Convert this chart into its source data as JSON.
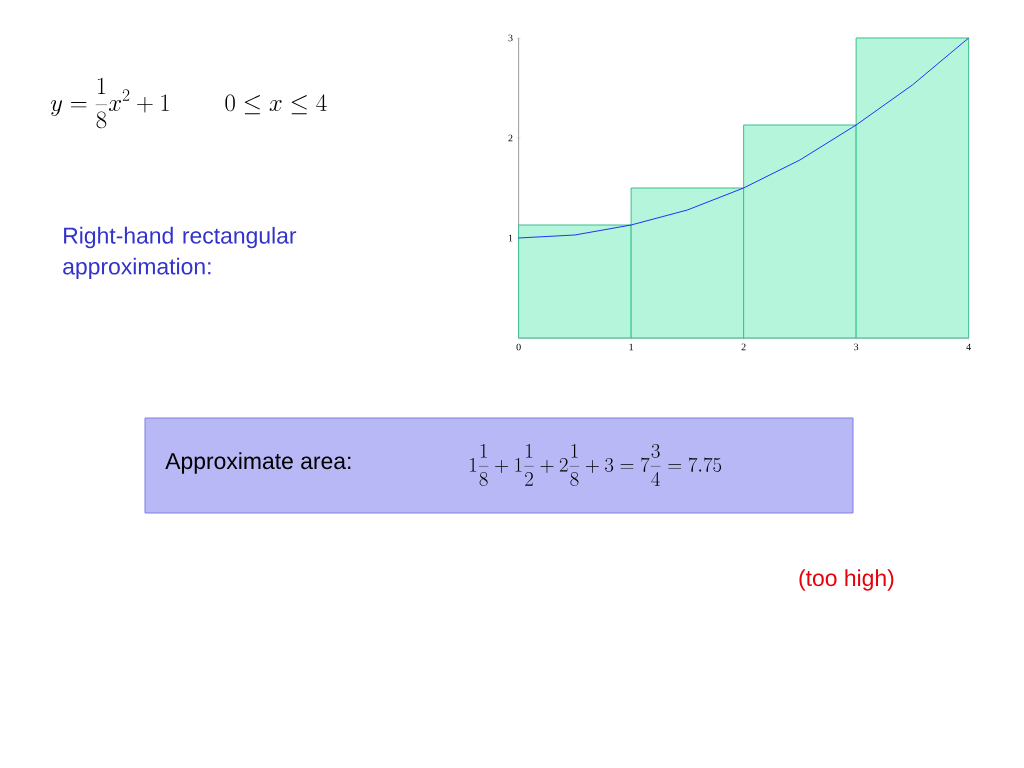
{
  "chart_data": {
    "type": "histogram",
    "bins": [
      0,
      1,
      2,
      3,
      4
    ],
    "values": [
      1.13,
      1.5,
      2.13,
      3
    ],
    "color": "#b4f5dc",
    "series": [
      {
        "type": "line",
        "x": [
          0,
          0.5,
          1,
          1.5,
          2,
          2.5,
          3,
          3.5,
          4
        ],
        "values": [
          1,
          1.03,
          1.13,
          1.28,
          1.5,
          1.78,
          2.13,
          2.53,
          3
        ],
        "color": "#0000ff"
      }
    ],
    "xlim": [
      0,
      4
    ],
    "ylim": [
      0,
      3
    ],
    "xticks": [
      0,
      1,
      2,
      3,
      4
    ],
    "yticks": [
      1,
      2,
      3
    ],
    "grid": false,
    "annotations": [
      "y=\\frac{1}{8}x^{2}+1\\qquad 0\\le x\\le 4",
      "Right-hand rectangular approximation:",
      "Approximate area:",
      "1\\frac{1}{8}+1\\frac{1}{2}+2\\frac{1}{8}+3=7\\frac{3}{4}=7.75",
      "(too high)"
    ]
  }
}
